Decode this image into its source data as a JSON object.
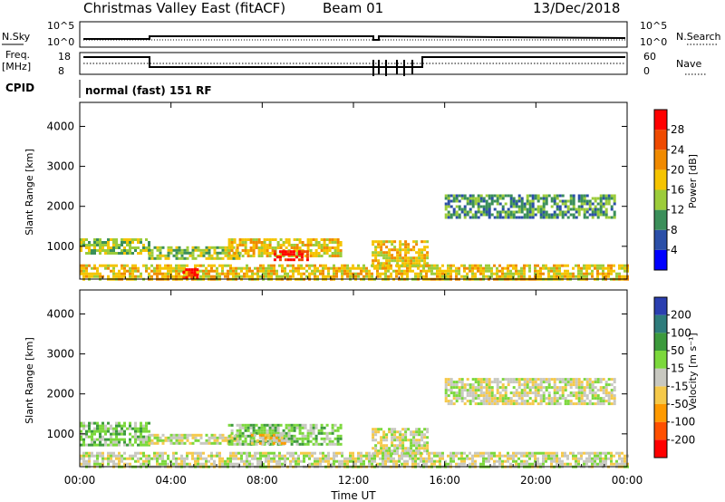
{
  "header": {
    "title": "Christmas Valley East (fitACF)",
    "beam": "Beam 01",
    "date": "13/Dec/2018"
  },
  "panels": {
    "nsky": {
      "label": "N.Sky",
      "ticks_left": [
        "10^5",
        "10^0"
      ],
      "ticks_right": [
        "10^5",
        "10^0"
      ],
      "right_label": "N.Search"
    },
    "freq": {
      "label_line1": "Freq.",
      "label_line2": "[MHz]",
      "ticks_left": [
        "18",
        "8"
      ],
      "ticks_right": [
        "60",
        "0"
      ],
      "right_label": "Nave"
    },
    "cpid": {
      "label": "CPID",
      "value": "normal (fast) 151 RF"
    }
  },
  "colors": {
    "power": [
      "#0000ff",
      "#2b4fa8",
      "#3b8f5a",
      "#9ccc3a",
      "#f5c400",
      "#f08a00",
      "#ef4a00",
      "#ff0000"
    ],
    "velocity": [
      "#ff0000",
      "#ff5000",
      "#ff9a00",
      "#f5c94a",
      "#c8c8c0",
      "#7cd83c",
      "#3c9a3c",
      "#2e7c7c",
      "#2b3fb0"
    ],
    "ground_scatter": "#c0c0b8"
  },
  "chart_data": [
    {
      "type": "heatmap",
      "name": "power",
      "ylabel": "Slant Range [km]",
      "colorbar_label": "Power [dB]",
      "colorbar_ticks": [
        "4",
        "8",
        "12",
        "16",
        "20",
        "24",
        "28"
      ],
      "x_ticks": [
        "00:00",
        "04:00",
        "08:00",
        "12:00",
        "16:00",
        "20:00",
        "00:00"
      ],
      "y_ticks": [
        1000,
        2000,
        3000,
        4000
      ],
      "ylim": [
        180,
        4600
      ],
      "xlim_hours": [
        0,
        24
      ],
      "regions": [
        {
          "t": [
            0.0,
            3.0
          ],
          "r": [
            850,
            1200
          ],
          "level": 3
        },
        {
          "t": [
            3.0,
            7.0
          ],
          "r": [
            700,
            1000
          ],
          "level": 3
        },
        {
          "t": [
            6.5,
            11.5
          ],
          "r": [
            750,
            1200
          ],
          "level": 4
        },
        {
          "t": [
            8.5,
            10.0
          ],
          "r": [
            650,
            900
          ],
          "level": 7
        },
        {
          "t": [
            12.8,
            15.3
          ],
          "r": [
            500,
            1150
          ],
          "level": 4
        },
        {
          "t": [
            16.0,
            23.4
          ],
          "r": [
            1750,
            2300
          ],
          "level": 2
        },
        {
          "t": [
            0.0,
            24.0
          ],
          "r": [
            180,
            550
          ],
          "level": 4
        },
        {
          "t": [
            4.5,
            5.2
          ],
          "r": [
            180,
            450
          ],
          "level": 7
        }
      ]
    },
    {
      "type": "heatmap",
      "name": "velocity",
      "ylabel": "Slant Range [km]",
      "xlabel": "Time UT",
      "colorbar_label": "Velocity [m s⁻¹]",
      "colorbar_ticks": [
        "-200",
        "-100",
        "-50",
        "-15",
        "15",
        "50",
        "100",
        "200"
      ],
      "x_ticks": [
        "00:00",
        "04:00",
        "08:00",
        "12:00",
        "16:00",
        "20:00",
        "00:00"
      ],
      "y_ticks": [
        1000,
        2000,
        3000,
        4000
      ],
      "ylim": [
        180,
        4600
      ],
      "xlim_hours": [
        0,
        24
      ],
      "regions": [
        {
          "t": [
            0.0,
            3.0
          ],
          "r": [
            750,
            1300
          ],
          "level": 5
        },
        {
          "t": [
            3.0,
            7.0
          ],
          "r": [
            750,
            1000
          ],
          "level": 4
        },
        {
          "t": [
            6.5,
            11.5
          ],
          "r": [
            750,
            1250
          ],
          "level": 5
        },
        {
          "t": [
            7.5,
            9.0
          ],
          "r": [
            750,
            1000
          ],
          "level": 3
        },
        {
          "t": [
            12.8,
            15.3
          ],
          "r": [
            500,
            1150
          ],
          "level": 4
        },
        {
          "t": [
            16.0,
            23.4
          ],
          "r": [
            1750,
            2400
          ],
          "level": 4
        },
        {
          "t": [
            0.0,
            24.0
          ],
          "r": [
            180,
            550
          ],
          "level": 4
        }
      ]
    }
  ]
}
